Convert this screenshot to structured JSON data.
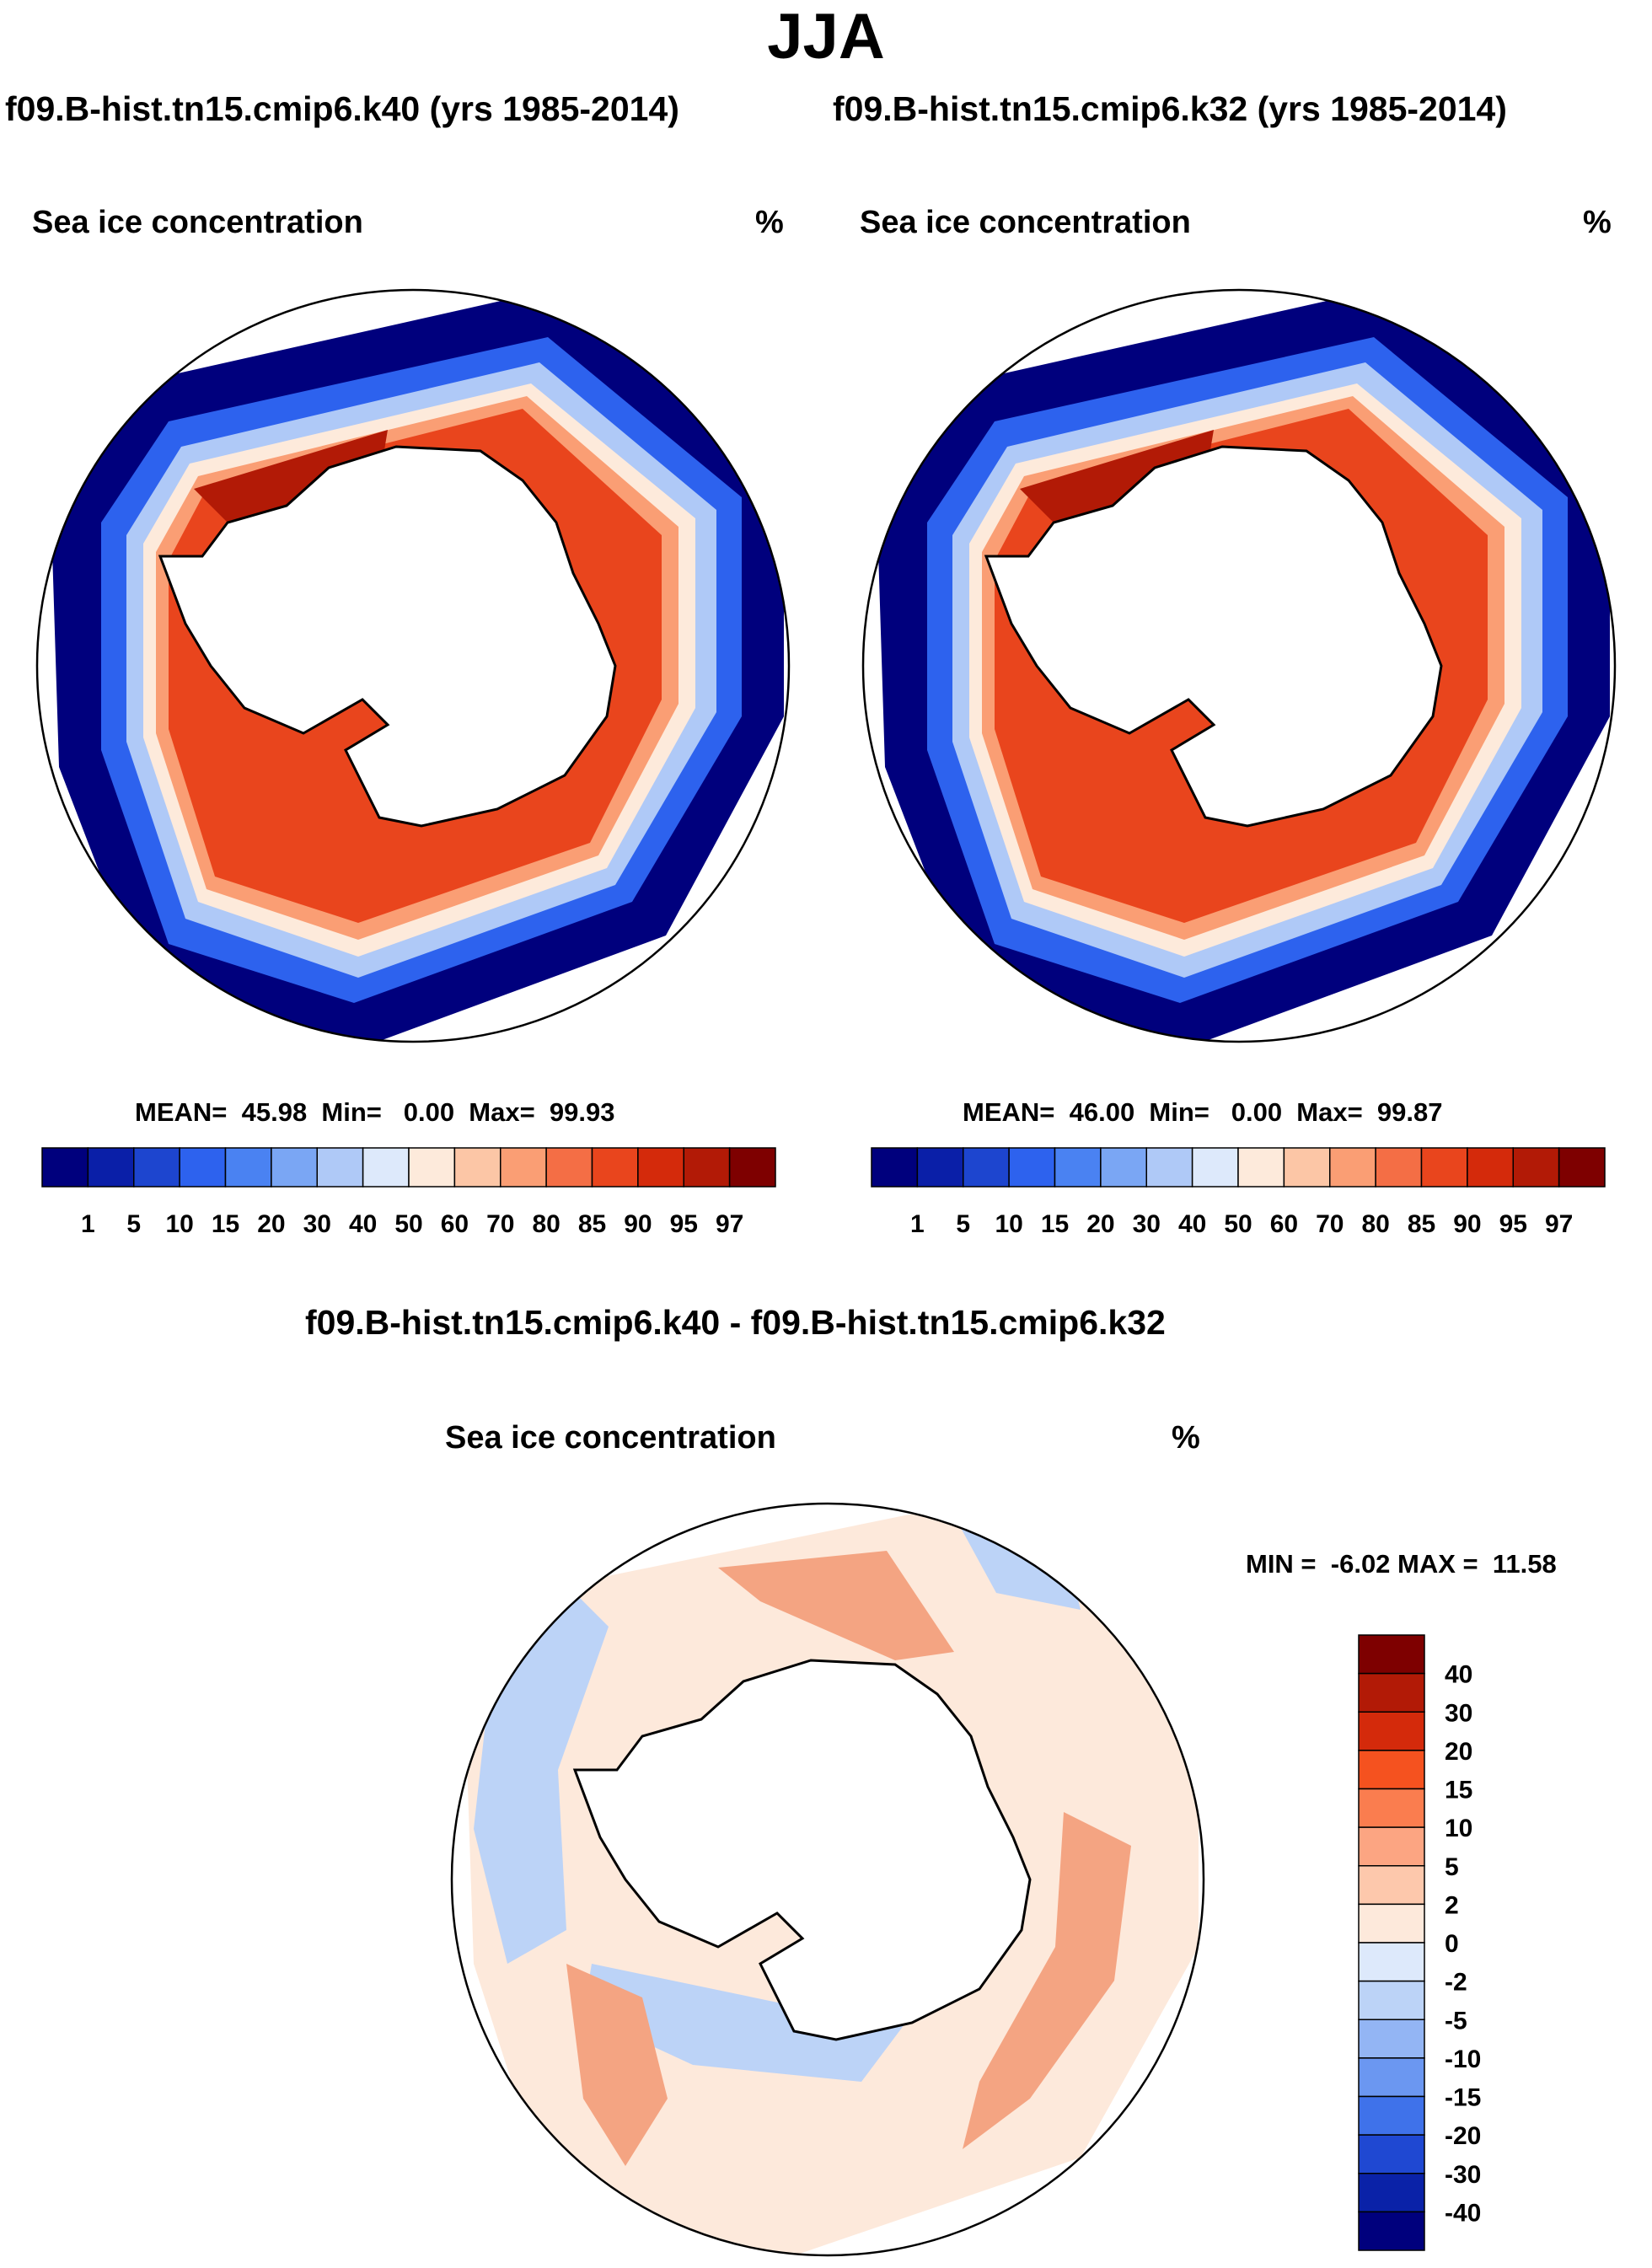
{
  "figure": {
    "season": "JJA",
    "case_left": "f09.B-hist.tn15.cmip6.k40 (yrs 1985-2014)",
    "case_right": "f09.B-hist.tn15.cmip6.k32 (yrs 1985-2014)",
    "diff_title": "f09.B-hist.tn15.cmip6.k40 - f09.B-hist.tn15.cmip6.k32"
  },
  "panels": [
    {
      "variable": "Sea ice concentration",
      "units": "%",
      "stats": "MEAN=  45.98  Min=   0.00  Max=  99.93"
    },
    {
      "variable": "Sea ice concentration",
      "units": "%",
      "stats": "MEAN=  46.00  Min=   0.00  Max=  99.87"
    },
    {
      "variable": "Sea ice concentration",
      "units": "%",
      "stats": "MIN =  -6.02 MAX =  11.58"
    }
  ],
  "chart_data": [
    {
      "type": "heatmap",
      "title": "Sea ice concentration",
      "case": "f09.B-hist.tn15.cmip6.k40 (yrs 1985-2014)",
      "units": "%",
      "projection": "south polar stereographic",
      "mean": 45.98,
      "min": 0.0,
      "max": 99.93,
      "colorbar_levels": [
        1,
        5,
        10,
        15,
        20,
        30,
        40,
        50,
        60,
        70,
        80,
        85,
        90,
        95,
        97
      ],
      "colorbar_labels": [
        "1",
        "5",
        "10",
        "15",
        "20",
        "30",
        "40",
        "50",
        "60",
        "70",
        "80",
        "85",
        "90",
        "95",
        "97"
      ],
      "colorbar_colors": [
        "#00007d",
        "#0a1fa8",
        "#1d45cf",
        "#2d62ee",
        "#4a82f2",
        "#7aa6f4",
        "#afc9f7",
        "#dde9fb",
        "#fdeadb",
        "#fcc6a6",
        "#fa9e74",
        "#f46e45",
        "#e9451d",
        "#d42a0b",
        "#b21a06",
        "#7e0000"
      ]
    },
    {
      "type": "heatmap",
      "title": "Sea ice concentration",
      "case": "f09.B-hist.tn15.cmip6.k32 (yrs 1985-2014)",
      "units": "%",
      "projection": "south polar stereographic",
      "mean": 46.0,
      "min": 0.0,
      "max": 99.87,
      "colorbar_levels": [
        1,
        5,
        10,
        15,
        20,
        30,
        40,
        50,
        60,
        70,
        80,
        85,
        90,
        95,
        97
      ],
      "colorbar_labels": [
        "1",
        "5",
        "10",
        "15",
        "20",
        "30",
        "40",
        "50",
        "60",
        "70",
        "80",
        "85",
        "90",
        "95",
        "97"
      ],
      "colorbar_colors": [
        "#00007d",
        "#0a1fa8",
        "#1d45cf",
        "#2d62ee",
        "#4a82f2",
        "#7aa6f4",
        "#afc9f7",
        "#dde9fb",
        "#fdeadb",
        "#fcc6a6",
        "#fa9e74",
        "#f46e45",
        "#e9451d",
        "#d42a0b",
        "#b21a06",
        "#7e0000"
      ]
    },
    {
      "type": "heatmap",
      "title": "Sea ice concentration",
      "case": "f09.B-hist.tn15.cmip6.k40 - f09.B-hist.tn15.cmip6.k32",
      "units": "%",
      "projection": "south polar stereographic",
      "min": -6.02,
      "max": 11.58,
      "colorbar_levels": [
        40,
        30,
        20,
        15,
        10,
        5,
        2,
        0,
        -2,
        -5,
        -10,
        -15,
        -20,
        -30,
        -40
      ],
      "colorbar_labels": [
        "40",
        "30",
        "20",
        "15",
        "10",
        "5",
        "2",
        "0",
        "-2",
        "-5",
        "-10",
        "-15",
        "-20",
        "-30",
        "-40"
      ],
      "colorbar_colors": [
        "#7e0000",
        "#b21a06",
        "#d42a0b",
        "#f5521f",
        "#fa7d4f",
        "#fca582",
        "#fdc8ac",
        "#fde9db",
        "#dde9fb",
        "#bcd3f7",
        "#93b5f4",
        "#6b97f1",
        "#3f72ea",
        "#1f48d2",
        "#0a22a8",
        "#00007d"
      ]
    }
  ],
  "colors": {
    "land": "#ffffff",
    "coast": "#000000",
    "ring_outer": "#00007d",
    "ring_mid": "#e9451d",
    "ring_inner": "#b21a06",
    "diff_pos": "#f4a482",
    "diff_light": "#fde9db",
    "diff_neg": "#bcd3f7"
  }
}
